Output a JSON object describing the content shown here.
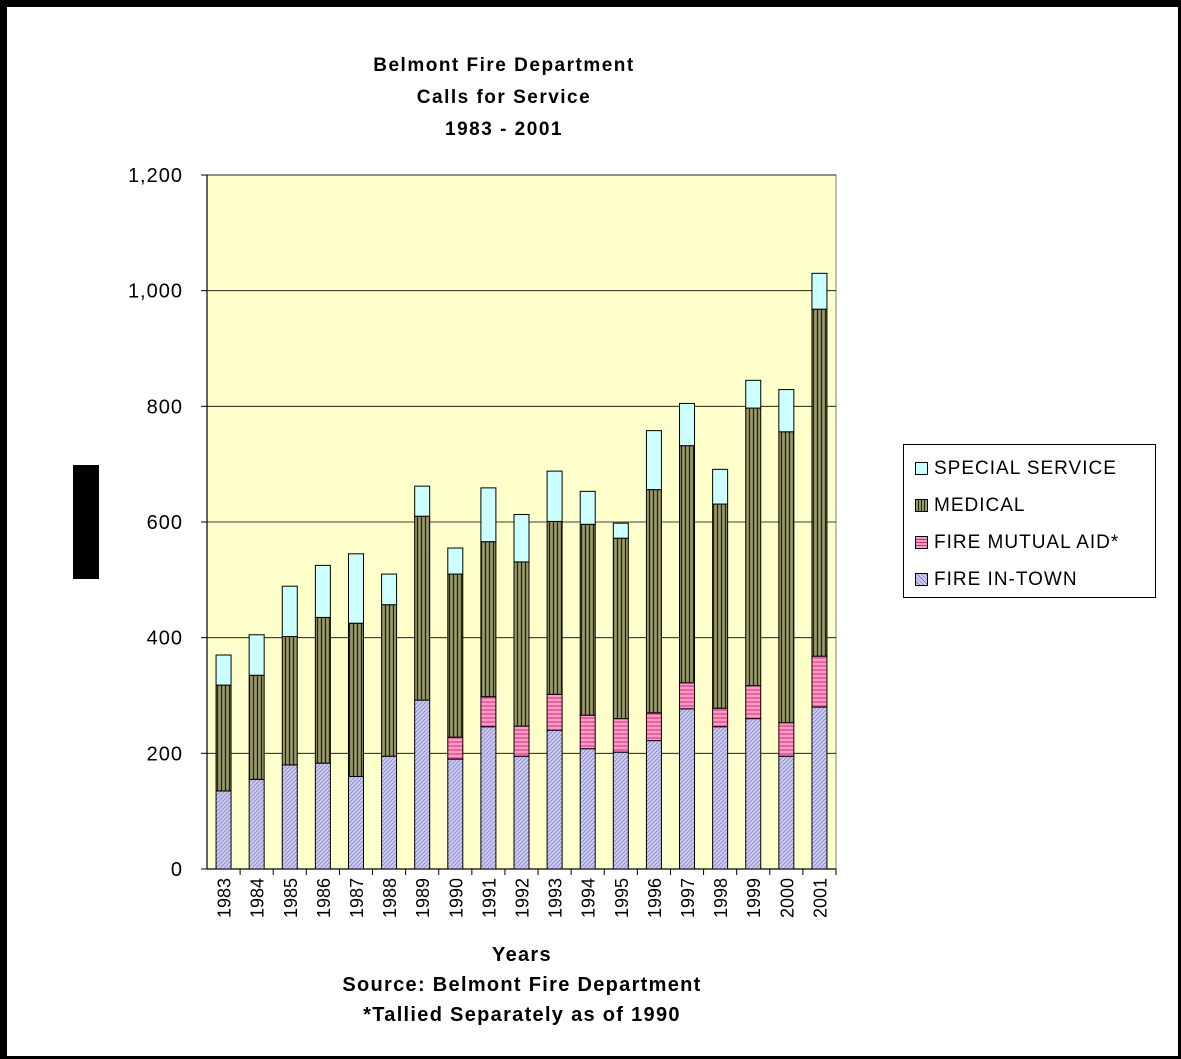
{
  "chart_data": {
    "type": "bar",
    "stacked": true,
    "title": [
      "Belmont Fire Department",
      "Calls for Service",
      "1983 - 2001"
    ],
    "xlabel": "Years",
    "footnotes": [
      "Source: Belmont Fire Department",
      "*Tallied Separately as of 1990"
    ],
    "ylim": [
      0,
      1200
    ],
    "yticks": [
      "0",
      "200",
      "400",
      "600",
      "800",
      "1,000",
      "1,200"
    ],
    "grid": true,
    "legend_position": "right",
    "categories": [
      "1983",
      "1984",
      "1985",
      "1986",
      "1987",
      "1988",
      "1989",
      "1990",
      "1991",
      "1992",
      "1993",
      "1994",
      "1995",
      "1996",
      "1997",
      "1998",
      "1999",
      "2000",
      "2001"
    ],
    "series": [
      {
        "name": "FIRE IN-TOWN",
        "color": "#ccccff",
        "pattern": "diag",
        "values": [
          135,
          155,
          180,
          183,
          160,
          195,
          292,
          190,
          246,
          195,
          240,
          208,
          202,
          222,
          277,
          246,
          260,
          195,
          280
        ]
      },
      {
        "name": "FIRE MUTUAL AID*",
        "color": "#ff99cc",
        "pattern": "horiz",
        "values": [
          0,
          0,
          0,
          0,
          0,
          0,
          0,
          38,
          52,
          52,
          62,
          58,
          58,
          48,
          45,
          32,
          57,
          58,
          88
        ]
      },
      {
        "name": "MEDICAL",
        "color": "#999966",
        "pattern": "vert",
        "values": [
          183,
          180,
          222,
          252,
          265,
          262,
          318,
          282,
          268,
          284,
          299,
          330,
          312,
          386,
          410,
          353,
          480,
          503,
          600
        ]
      },
      {
        "name": "SPECIAL SERVICE",
        "color": "#ccffff",
        "pattern": "none",
        "values": [
          52,
          70,
          87,
          90,
          120,
          53,
          52,
          45,
          93,
          82,
          87,
          57,
          26,
          102,
          73,
          60,
          48,
          73,
          62
        ]
      }
    ],
    "plot_bg": "#ffffcc"
  },
  "legend_order": [
    3,
    2,
    1,
    0
  ]
}
